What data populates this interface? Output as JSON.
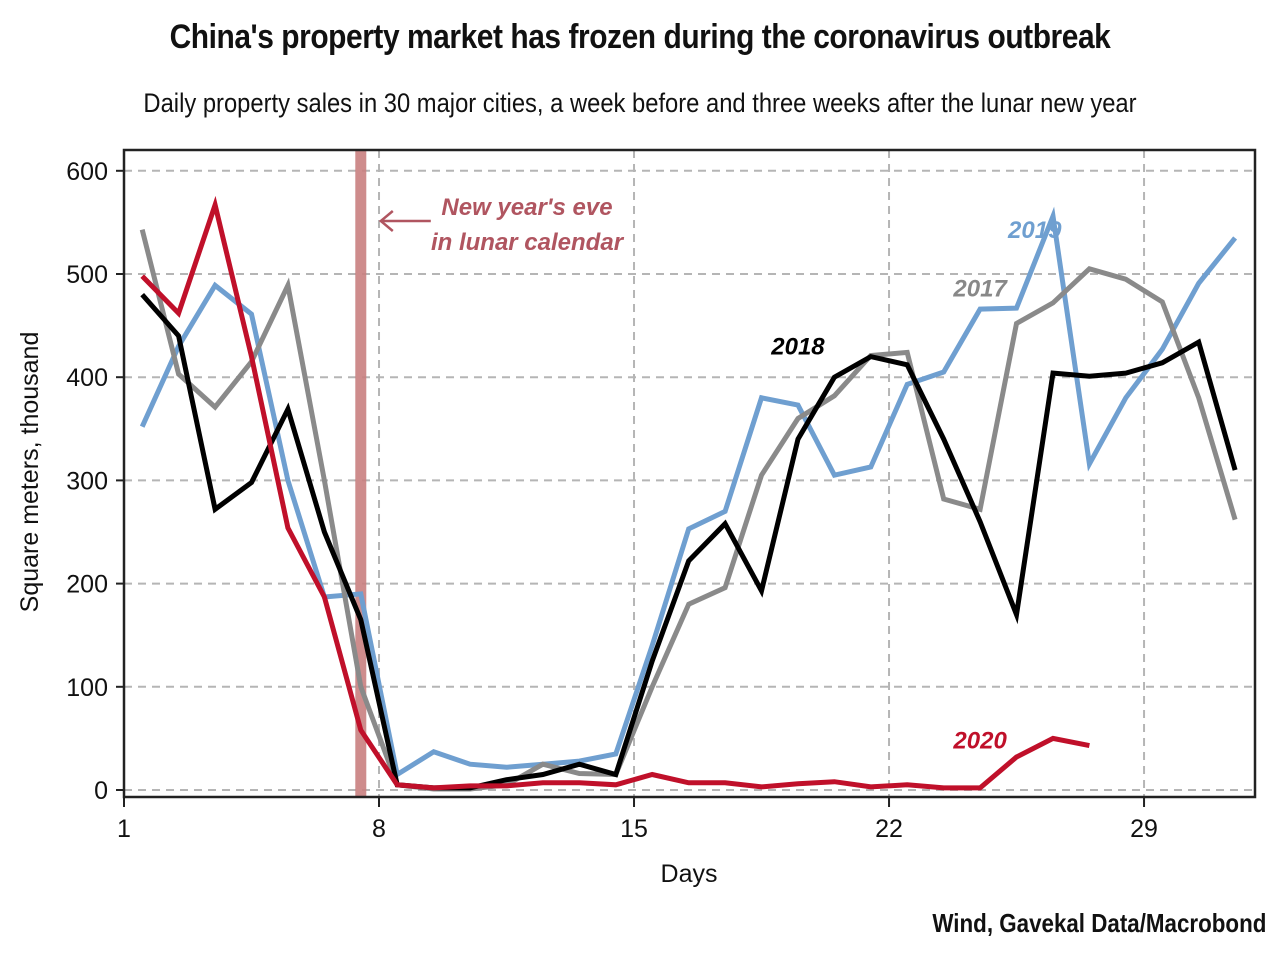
{
  "title": "China's property market has frozen during the coronavirus outbreak",
  "subtitle": "Daily property sales in 30 major cities, a week before and three weeks after the lunar new year",
  "source": "Wind, Gavekal Data/Macrobond",
  "chart_data": {
    "type": "line",
    "title": "China's property market has frozen during the coronavirus outbreak",
    "subtitle": "Daily property sales in 30 major cities, a week before and three weeks after the lunar new year",
    "xlabel": "Days",
    "ylabel": "Square meters, thousand",
    "xlim": [
      1,
      32.2
    ],
    "ylim": [
      -5,
      620
    ],
    "xticks": [
      1,
      8,
      15,
      22,
      29
    ],
    "yticks": [
      0,
      100,
      200,
      300,
      400,
      500,
      600
    ],
    "grid": true,
    "x": [
      1.5,
      2.5,
      3.5,
      4.5,
      5.5,
      6.5,
      7.5,
      8.5,
      9.5,
      10.5,
      11.5,
      12.5,
      13.5,
      14.5,
      15.5,
      16.5,
      17.5,
      18.5,
      19.5,
      20.5,
      21.5,
      22.5,
      23.5,
      24.5,
      25.5,
      26.5,
      27.5,
      28.5,
      29.5,
      30.5,
      31.5
    ],
    "series": [
      {
        "name": "2017",
        "color": "#8a8a8a",
        "values": [
          543,
          403,
          371,
          415,
          489,
          300,
          100,
          5,
          1,
          1,
          5,
          25,
          16,
          15,
          100,
          180,
          196,
          305,
          360,
          382,
          421,
          424,
          282,
          272,
          452,
          472,
          505,
          495,
          473,
          380,
          262
        ]
      },
      {
        "name": "2018",
        "color": "#000000",
        "values": [
          480,
          440,
          272,
          298,
          369,
          250,
          165,
          5,
          2,
          2,
          10,
          15,
          25,
          15,
          125,
          222,
          258,
          193,
          340,
          400,
          420,
          412,
          340,
          260,
          170,
          404,
          401,
          404,
          414,
          434,
          310
        ]
      },
      {
        "name": "2019",
        "color": "#6f9fd0",
        "values": [
          352,
          430,
          489,
          461,
          300,
          187,
          190,
          15,
          37,
          25,
          22,
          25,
          28,
          35,
          140,
          253,
          270,
          380,
          373,
          305,
          313,
          393,
          405,
          466,
          467,
          556,
          316,
          380,
          427,
          491,
          535
        ]
      },
      {
        "name": "2020",
        "color": "#c0102a",
        "values": [
          498,
          462,
          567,
          420,
          254,
          187,
          58,
          5,
          2,
          4,
          4,
          7,
          7,
          5,
          15,
          7,
          7,
          3,
          6,
          8,
          3,
          5,
          2,
          2,
          32,
          50,
          43
        ]
      }
    ],
    "series_labels": [
      {
        "name": "2019",
        "x": 26,
        "y": 535
      },
      {
        "name": "2017",
        "x": 24.5,
        "y": 478
      },
      {
        "name": "2018",
        "x": 19.5,
        "y": 422
      },
      {
        "name": "2020",
        "x": 24.5,
        "y": 40
      }
    ],
    "annotations": [
      {
        "type": "vertical-band",
        "x": 7.5,
        "color": "#c98080",
        "label_lines": [
          "New year's eve",
          "in lunar calendar"
        ],
        "label_color": "#b05560",
        "arrow": "left"
      }
    ],
    "legend": "inline-labels"
  }
}
